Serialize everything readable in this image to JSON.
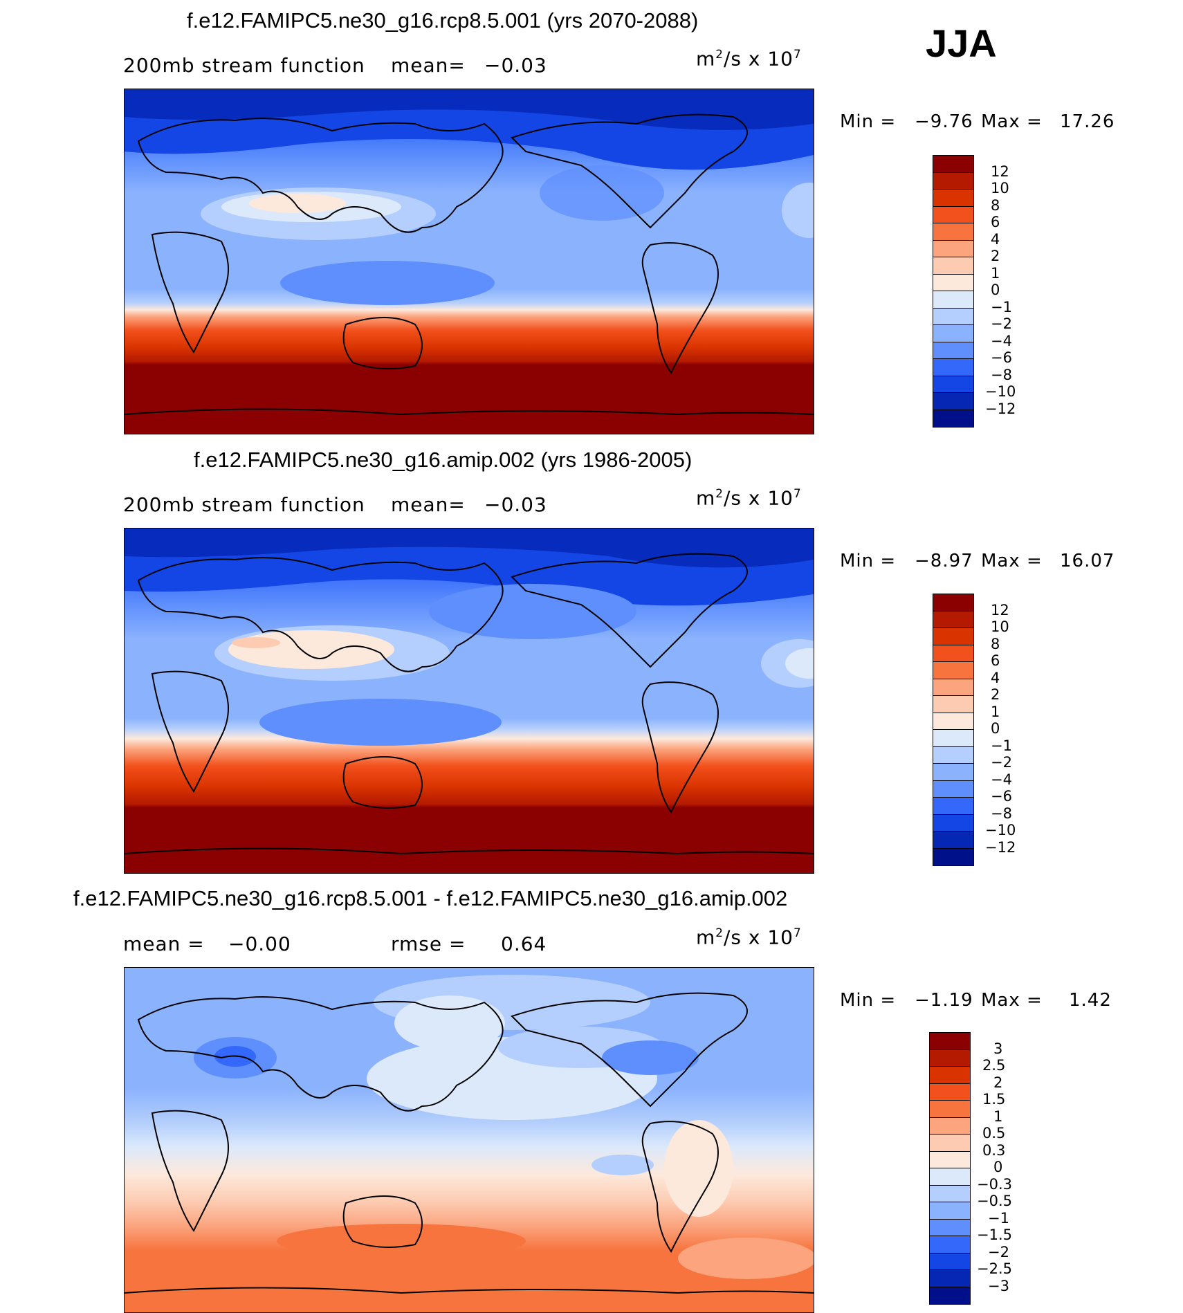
{
  "season": "JJA",
  "panels": [
    {
      "title": "f.e12.FAMIPC5.ne30_g16.rcp8.5.001 (yrs 2070-2088)",
      "left_label": "200mb stream function",
      "mean_label": "mean=",
      "mean_value": "−0.03",
      "units_base": "m",
      "units_exp1": "2",
      "units_mid": "/s x 10",
      "units_exp2": "7",
      "min_label": "Min =",
      "min_value": "−9.76",
      "max_label": "Max =",
      "max_value": "17.26"
    },
    {
      "title": "f.e12.FAMIPC5.ne30_g16.amip.002 (yrs 1986-2005)",
      "left_label": "200mb stream function",
      "mean_label": "mean=",
      "mean_value": "−0.03",
      "units_base": "m",
      "units_exp1": "2",
      "units_mid": "/s x 10",
      "units_exp2": "7",
      "min_label": "Min =",
      "min_value": "−8.97",
      "max_label": "Max =",
      "max_value": "16.07"
    },
    {
      "title": "f.e12.FAMIPC5.ne30_g16.rcp8.5.001 - f.e12.FAMIPC5.ne30_g16.amip.002",
      "left_label": "mean =",
      "mean_label": "",
      "mean_value": "−0.00",
      "rmse_label": "rmse =",
      "rmse_value": "0.64",
      "units_base": "m",
      "units_exp1": "2",
      "units_mid": "/s x 10",
      "units_exp2": "7",
      "min_label": "Min =",
      "min_value": "−1.19",
      "max_label": "Max =",
      "max_value": "1.42"
    }
  ],
  "chart_data": [
    {
      "type": "heatmap",
      "title": "f.e12.FAMIPC5.ne30_g16.rcp8.5.001 (yrs 2070-2088)",
      "variable": "200mb stream function",
      "units": "m^2/s x 10^7",
      "mean": -0.03,
      "min": -9.76,
      "max": 17.26,
      "contour_levels": [
        -12,
        -10,
        -8,
        -6,
        -4,
        -2,
        -1,
        0,
        1,
        2,
        4,
        6,
        8,
        10,
        12
      ],
      "colorbar_labels": [
        "12",
        "10",
        "8",
        "6",
        "4",
        "2",
        "1",
        "0",
        "−1",
        "−2",
        "−4",
        "−6",
        "−8",
        "−10",
        "−12"
      ]
    },
    {
      "type": "heatmap",
      "title": "f.e12.FAMIPC5.ne30_g16.amip.002 (yrs 1986-2005)",
      "variable": "200mb stream function",
      "units": "m^2/s x 10^7",
      "mean": -0.03,
      "min": -8.97,
      "max": 16.07,
      "contour_levels": [
        -12,
        -10,
        -8,
        -6,
        -4,
        -2,
        -1,
        0,
        1,
        2,
        4,
        6,
        8,
        10,
        12
      ],
      "colorbar_labels": [
        "12",
        "10",
        "8",
        "6",
        "4",
        "2",
        "1",
        "0",
        "−1",
        "−2",
        "−4",
        "−6",
        "−8",
        "−10",
        "−12"
      ]
    },
    {
      "type": "heatmap",
      "title": "f.e12.FAMIPC5.ne30_g16.rcp8.5.001 - f.e12.FAMIPC5.ne30_g16.amip.002",
      "units": "m^2/s x 10^7",
      "mean": -0.0,
      "rmse": 0.64,
      "min": -1.19,
      "max": 1.42,
      "contour_levels": [
        -3,
        -2.5,
        -2,
        -1.5,
        -1,
        -0.5,
        -0.3,
        0,
        0.3,
        0.5,
        1,
        1.5,
        2,
        2.5,
        3
      ],
      "colorbar_labels": [
        "3",
        "2.5",
        "2",
        "1.5",
        "1",
        "0.5",
        "0.3",
        "0",
        "−0.3",
        "−0.5",
        "−1",
        "−1.5",
        "−2",
        "−2.5",
        "−3"
      ]
    }
  ],
  "colors": {
    "bar16": [
      "#8b0000",
      "#b31a00",
      "#d93300",
      "#f2501c",
      "#f7743f",
      "#fba47e",
      "#fdcbb1",
      "#fde9dc",
      "#dbe9fb",
      "#b4cffd",
      "#8bb2fd",
      "#5e8ffd",
      "#3368fa",
      "#1446e6",
      "#0527b4",
      "#00108a"
    ]
  }
}
